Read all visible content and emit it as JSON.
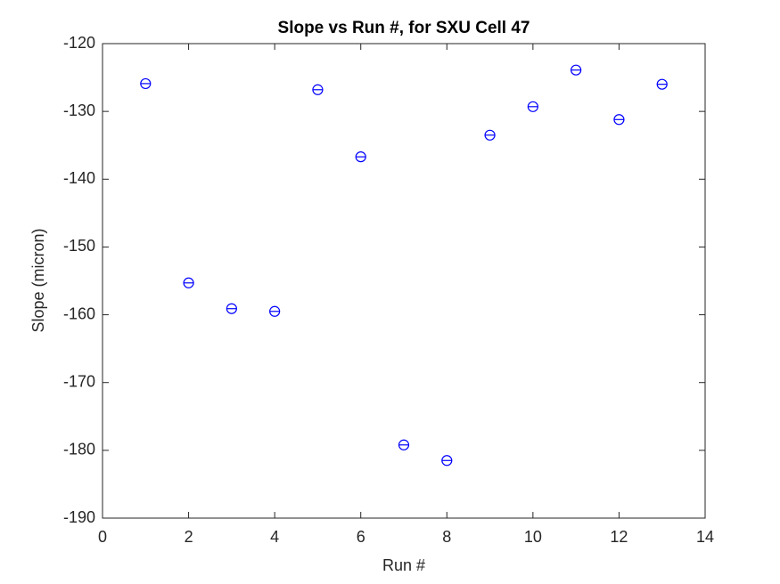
{
  "chart_data": {
    "type": "scatter",
    "title": "Slope vs Run #, for SXU Cell 47",
    "x_label": "Run #",
    "y_label": "Slope (micron)",
    "series": [
      {
        "color": "#0000ff",
        "x": [
          1,
          2,
          3,
          4,
          5,
          6,
          7,
          8,
          9,
          10,
          11,
          12,
          13
        ],
        "values": [
          -125.9,
          -155.3,
          -159.1,
          -159.5,
          -126.8,
          -136.7,
          -179.2,
          -181.5,
          -133.5,
          -129.3,
          -123.9,
          -131.2,
          -126.0
        ]
      }
    ],
    "xlim": [
      0,
      14
    ],
    "xticks": [
      0,
      2,
      4,
      6,
      8,
      10,
      12,
      14
    ],
    "ylim": [
      -190,
      -120
    ],
    "yticks": [
      -190,
      -180,
      -170,
      -160,
      -150,
      -140,
      -130,
      -120
    ],
    "grid": false
  }
}
